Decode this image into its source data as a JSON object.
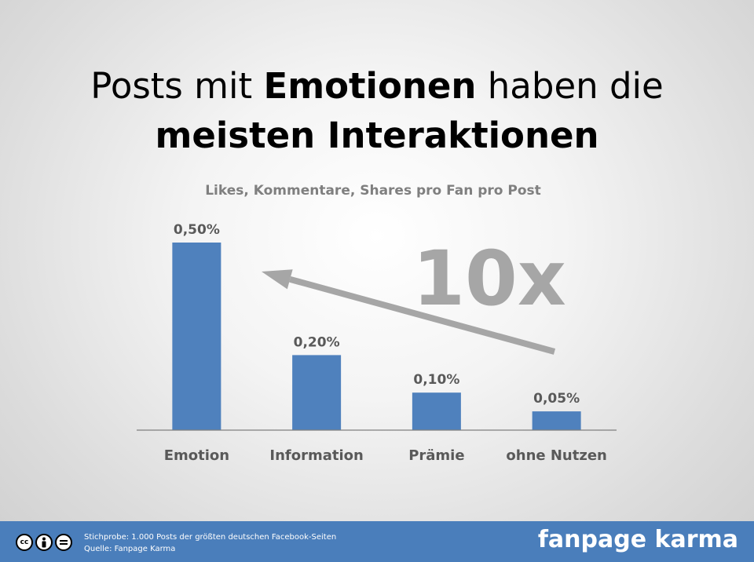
{
  "title": {
    "line1_pre": "Posts mit ",
    "line1_bold": "Emotionen",
    "line1_post": " haben die",
    "line2_bold": "meisten Interaktionen"
  },
  "chart_data": {
    "type": "bar",
    "subtitle": "Likes, Kommentare, Shares pro Fan pro Post",
    "categories": [
      "Emotion",
      "Information",
      "Prämie",
      "ohne Nutzen"
    ],
    "values": [
      0.5,
      0.2,
      0.1,
      0.05
    ],
    "value_labels": [
      "0,50%",
      "0,20%",
      "0,10%",
      "0,05%"
    ],
    "ylim": [
      0,
      0.5
    ],
    "grid": false,
    "bar_color": "#4f81bd",
    "annotation": {
      "text": "10x",
      "color": "#a6a6a6",
      "arrow": "from ohne Nutzen to Emotion"
    }
  },
  "footer": {
    "line1": "Stichprobe: 1.000 Posts der größten deutschen Facebook-Seiten",
    "line2": "Quelle: Fanpage Karma",
    "brand": "fanpage karma",
    "license_icon": "cc-by-nd-icon",
    "background": "#4a7ebb"
  }
}
